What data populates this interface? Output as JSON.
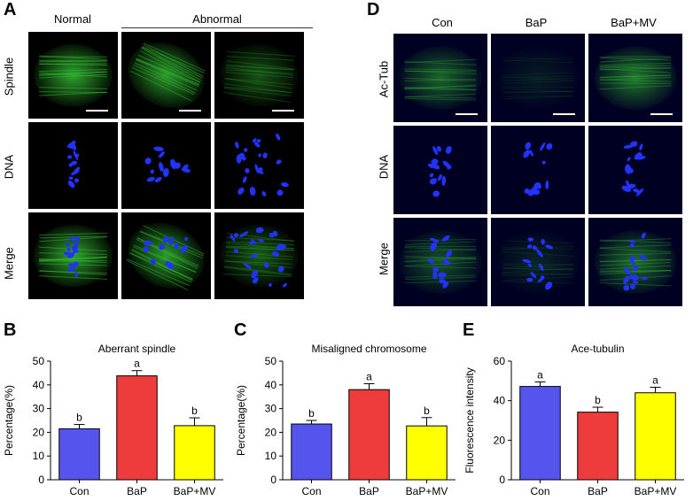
{
  "panels": {
    "A": {
      "letter": "A",
      "col_normal": "Normal",
      "col_abnormal": "Abnormal",
      "rows": [
        "Spindle",
        "DNA",
        "Merge"
      ]
    },
    "D": {
      "letter": "D",
      "cols": [
        "Con",
        "BaP",
        "BaP+MV"
      ],
      "rows": [
        "Ac-Tub",
        "DNA",
        "Merge"
      ]
    },
    "B": {
      "letter": "B"
    },
    "C": {
      "letter": "C"
    },
    "E": {
      "letter": "E"
    }
  },
  "colors": {
    "con": "#5555ee",
    "bap": "#ee3b3b",
    "bapmv": "#ffff00",
    "spindle": "#2fa82f",
    "dna": "#2233ff"
  },
  "chart_data": [
    {
      "id": "B",
      "type": "bar",
      "title": "Aberrant spindle",
      "ylabel": "Percentage(%)",
      "categories": [
        "Con",
        "BaP",
        "BaP+MV"
      ],
      "values": [
        21.5,
        43.8,
        22.8
      ],
      "errors": [
        1.8,
        2.2,
        3.3
      ],
      "sig_letters": [
        "b",
        "a",
        "b"
      ],
      "ylim": [
        0,
        50
      ],
      "yticks": [
        0,
        10,
        20,
        30,
        40,
        50
      ]
    },
    {
      "id": "C",
      "type": "bar",
      "title": "Misaligned chromosome",
      "ylabel": "Percentage(%)",
      "categories": [
        "Con",
        "BaP",
        "BaP+MV"
      ],
      "values": [
        23.5,
        38.0,
        22.7
      ],
      "errors": [
        1.5,
        2.5,
        3.5
      ],
      "sig_letters": [
        "b",
        "a",
        "b"
      ],
      "ylim": [
        0,
        50
      ],
      "yticks": [
        0,
        10,
        20,
        30,
        40,
        50
      ]
    },
    {
      "id": "E",
      "type": "bar",
      "title": "Ace-tubulin",
      "ylabel": "Fluorescence intensity",
      "categories": [
        "Con",
        "BaP",
        "BaP+MV"
      ],
      "values": [
        47.2,
        34.2,
        44.0
      ],
      "errors": [
        2.3,
        2.5,
        2.8
      ],
      "sig_letters": [
        "a",
        "b",
        "a"
      ],
      "ylim": [
        0,
        60
      ],
      "yticks": [
        0,
        20,
        40,
        60
      ]
    }
  ]
}
